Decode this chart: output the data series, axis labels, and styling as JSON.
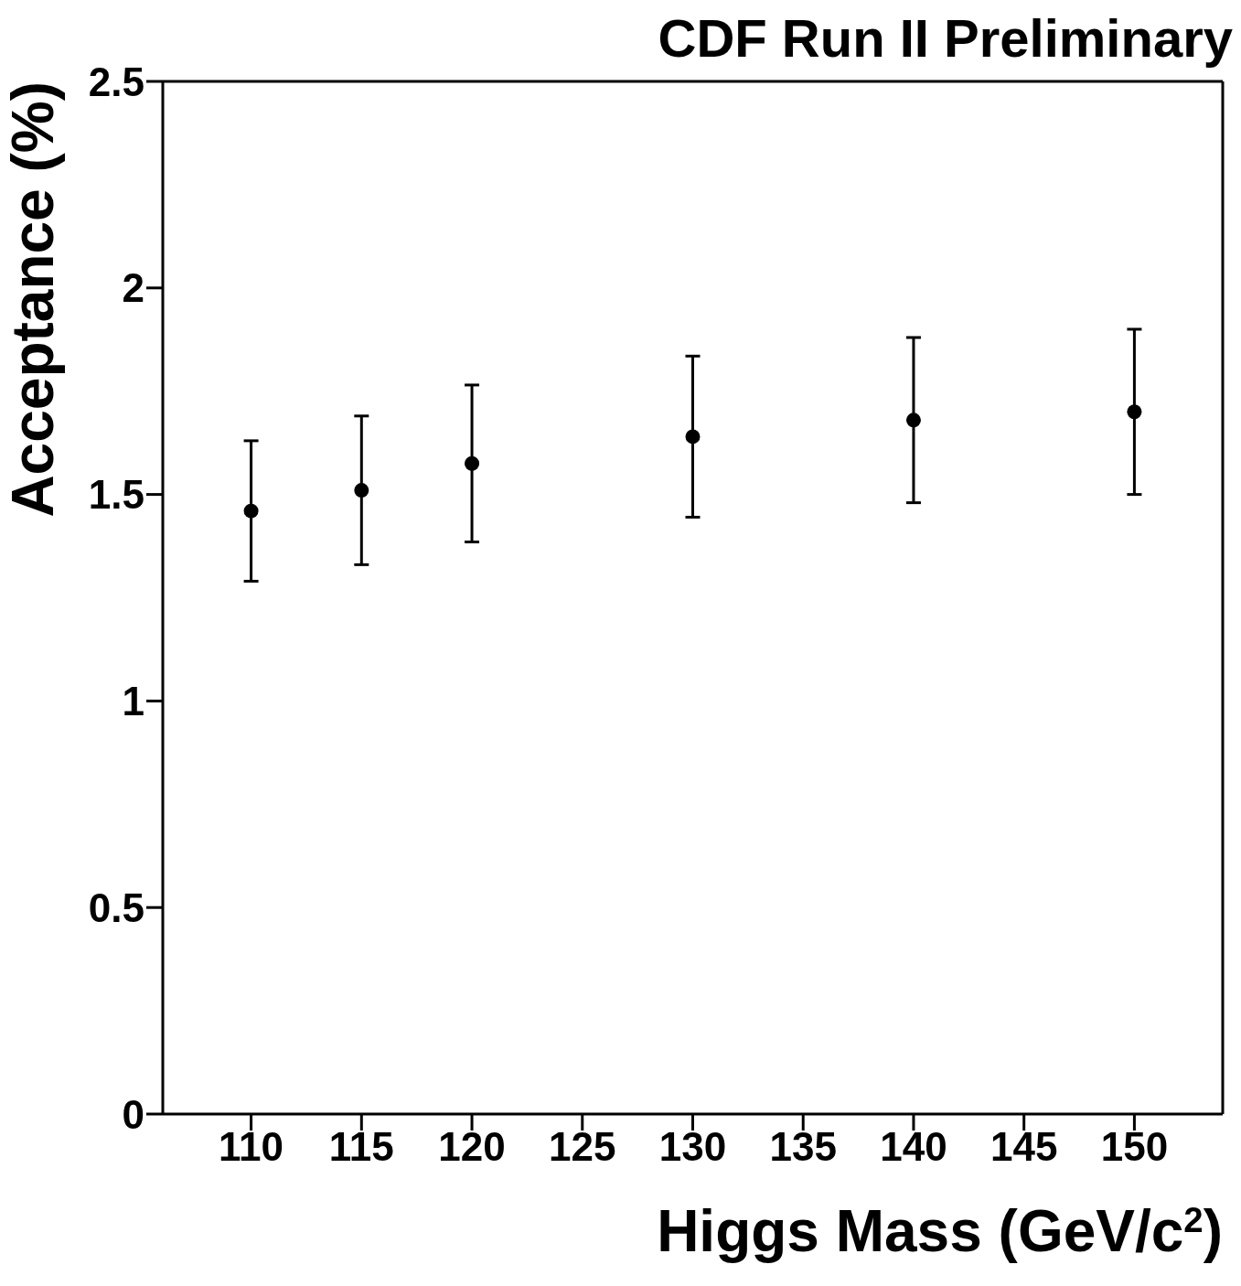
{
  "chart_data": {
    "type": "scatter",
    "title": "CDF Run II Preliminary",
    "xlabel": "Higgs Mass (GeV/c$^{2}$)",
    "ylabel": "Acceptance (%)",
    "x": [
      110,
      115,
      120,
      130,
      140,
      150
    ],
    "values": [
      1.46,
      1.51,
      1.575,
      1.64,
      1.68,
      1.7
    ],
    "errors": [
      0.17,
      0.18,
      0.19,
      0.195,
      0.2,
      0.2
    ],
    "color": "#000000",
    "marker": "circle",
    "xlim": [
      106,
      154
    ],
    "xticks": [
      110,
      115,
      120,
      125,
      130,
      135,
      140,
      145,
      150
    ],
    "ylim": [
      0,
      2.5
    ],
    "yticks": [
      0,
      0.5,
      1,
      1.5,
      2,
      2.5
    ]
  }
}
